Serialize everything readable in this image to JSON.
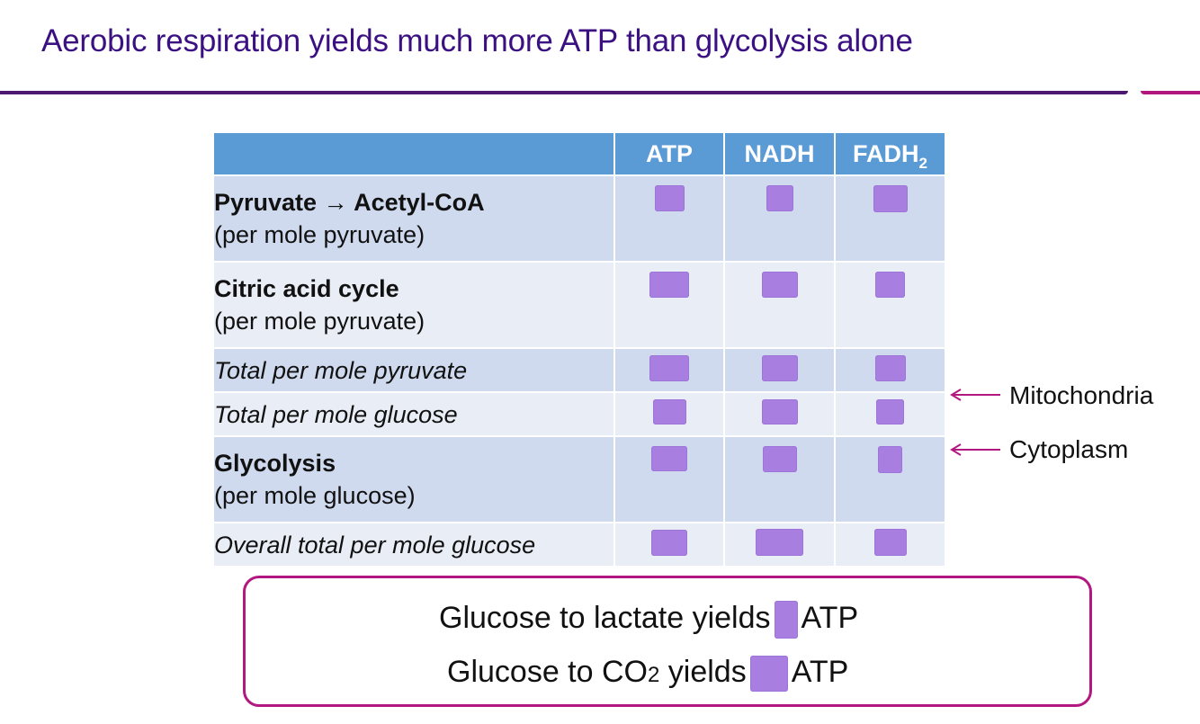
{
  "slide": {
    "title": "Aerobic respiration yields much more ATP than glycolysis alone"
  },
  "table": {
    "headers": {
      "col0": "",
      "col1": "ATP",
      "col2": "NADH",
      "col3_main": "FADH",
      "col3_sub": "2"
    },
    "rows": [
      {
        "bold": "Pyruvate → Acetyl-CoA",
        "note": "(per mole pyruvate)"
      },
      {
        "bold": "Citric acid cycle",
        "note": "(per mole pyruvate)"
      },
      {
        "italic": "Total per mole pyruvate"
      },
      {
        "italic": "Total per mole glucose"
      },
      {
        "bold": "Glycolysis",
        "note": "(per mole glucose)"
      },
      {
        "italic": "Overall total per mole glucose"
      }
    ]
  },
  "annotations": {
    "mitochondria": "Mitochondria",
    "cytoplasm": "Cytoplasm"
  },
  "summary": {
    "line1_prefix": "Glucose to lactate yields",
    "line1_suffix": "ATP",
    "line2_prefix": "Glucose to CO",
    "line2_sub": "2",
    "line2_mid": " yields",
    "line2_suffix": "ATP"
  },
  "colors": {
    "title": "#3b1082",
    "header_fill": "#5b9bd5",
    "row_dark": "#cfdaee",
    "row_light": "#e9edf5",
    "redaction": "#a87fe0",
    "accent": "#b2187f"
  }
}
